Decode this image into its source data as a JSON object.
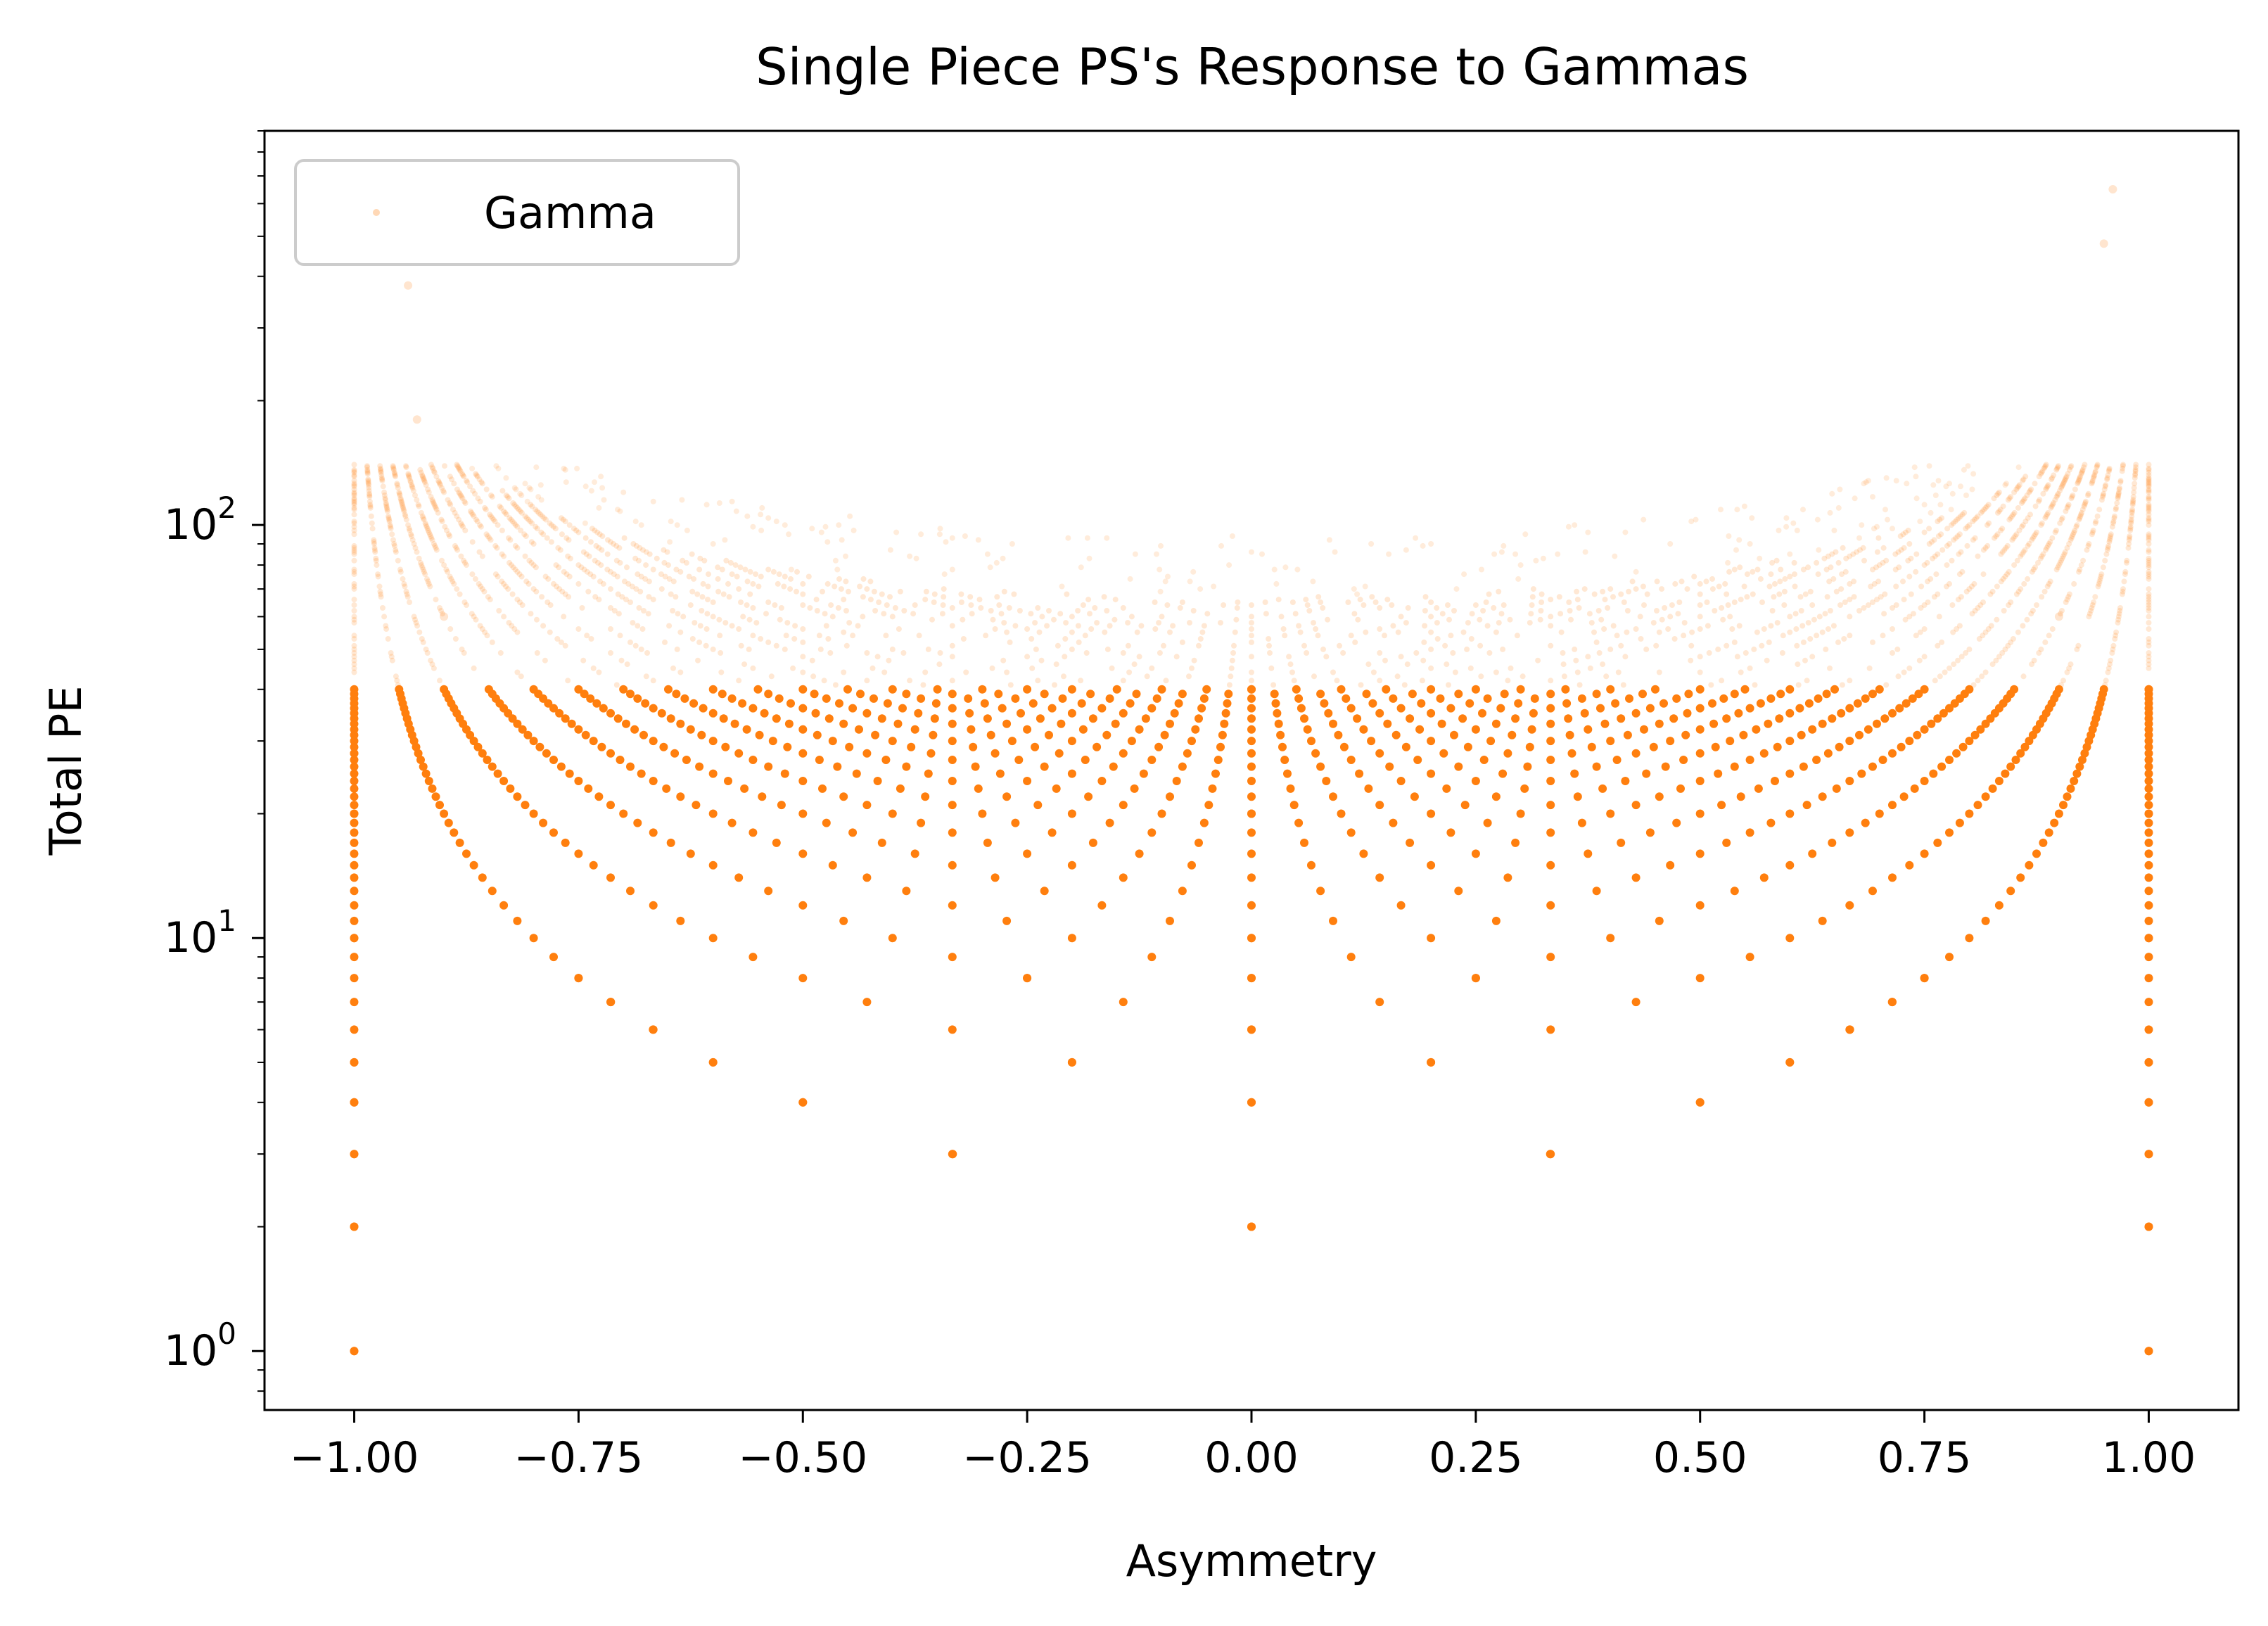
{
  "chart_data": {
    "type": "scatter",
    "title": "Single Piece PS's Response to Gammas",
    "xlabel": "Asymmetry",
    "ylabel": "Total PE",
    "xlim": [
      -1.1,
      1.1
    ],
    "ylim": [
      0.72,
      900
    ],
    "yscale": "log",
    "grid": false,
    "legend_position": "top-left",
    "xticks": [
      -1.0,
      -0.75,
      -0.5,
      -0.25,
      0.0,
      0.25,
      0.5,
      0.75,
      1.0
    ],
    "xtick_labels": [
      "−1.00",
      "−0.75",
      "−0.50",
      "−0.25",
      "0.00",
      "0.25",
      "0.50",
      "0.75",
      "1.00"
    ],
    "yticks": [
      1,
      10,
      100
    ],
    "ytick_labels": [
      {
        "base": "10",
        "exp": "0"
      },
      {
        "base": "10",
        "exp": "1"
      },
      {
        "base": "10",
        "exp": "2"
      }
    ],
    "series": [
      {
        "name": "Gamma",
        "color": "#ff7f0e",
        "marker": "dot",
        "description_of_points": "asymmetry = (a-b)/(a+b), total = a+b for integer photo-electron counts a, b on each side of the piece",
        "dense_below_total": 40,
        "points": [
          [
            -1.0,
            1
          ],
          [
            -1.0,
            2
          ],
          [
            -1.0,
            3
          ],
          [
            -1.0,
            4
          ],
          [
            -1.0,
            5
          ],
          [
            -1.0,
            10
          ],
          [
            -1.0,
            20
          ],
          [
            -1.0,
            28
          ],
          [
            0.0,
            2
          ],
          [
            0.0,
            4
          ],
          [
            0.0,
            6
          ],
          [
            0.0,
            8
          ],
          [
            0.0,
            10
          ],
          [
            0.0,
            20
          ],
          [
            0.0,
            40
          ],
          [
            -0.333,
            3
          ],
          [
            0.333,
            3
          ],
          [
            -0.5,
            4
          ],
          [
            0.5,
            4
          ],
          [
            -0.6,
            5
          ],
          [
            0.6,
            5
          ],
          [
            -0.2,
            5
          ],
          [
            0.2,
            5
          ],
          [
            -0.667,
            6
          ],
          [
            0.667,
            6
          ],
          [
            -0.714,
            7
          ],
          [
            0.714,
            7
          ],
          [
            -0.75,
            8
          ],
          [
            0.75,
            8
          ],
          [
            -0.25,
            8
          ],
          [
            0.25,
            8
          ],
          [
            1.0,
            1
          ],
          [
            1.0,
            2
          ],
          [
            1.0,
            3
          ],
          [
            1.0,
            4
          ],
          [
            1.0,
            5
          ],
          [
            1.0,
            10
          ],
          [
            1.0,
            20
          ],
          [
            1.0,
            40
          ],
          [
            -0.9,
            60
          ],
          [
            0.9,
            60
          ],
          [
            -0.93,
            180
          ],
          [
            0.96,
            650
          ],
          [
            0.95,
            480
          ],
          [
            -0.94,
            380
          ]
        ]
      }
    ]
  }
}
